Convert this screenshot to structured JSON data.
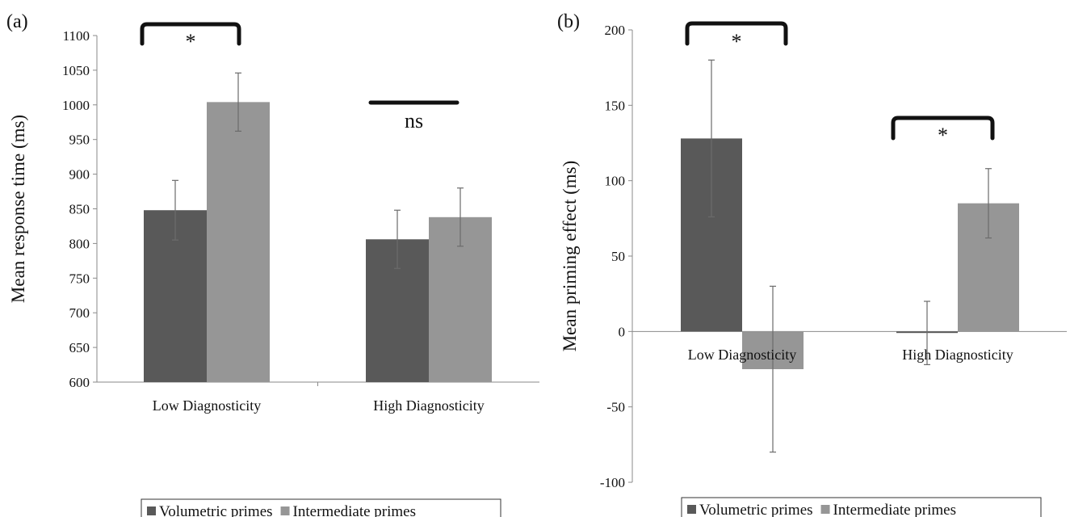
{
  "chart_data": [
    {
      "type": "bar",
      "panel_label": "(a)",
      "categories": [
        "Low Diagnosticity",
        "High Diagnosticity"
      ],
      "ylabel": "Mean response time (ms)",
      "ylim": [
        600,
        1100
      ],
      "yticks": [
        600,
        650,
        700,
        750,
        800,
        850,
        900,
        950,
        1000,
        1050,
        1100
      ],
      "series": [
        {
          "name": "Volumetric primes",
          "color": "#595959",
          "values": [
            848,
            806
          ],
          "errors": [
            43,
            42
          ]
        },
        {
          "name": "Intermediate primes",
          "color": "#969696",
          "values": [
            1004,
            838
          ],
          "errors": [
            42,
            42
          ]
        }
      ],
      "annotations": [
        {
          "type": "bracket",
          "category": 0,
          "text": "*"
        },
        {
          "type": "line",
          "category": 1,
          "text": "ns"
        }
      ],
      "legend_position": "bottom"
    },
    {
      "type": "bar",
      "panel_label": "(b)",
      "categories": [
        "Low Diagnosticity",
        "High Diagnosticity"
      ],
      "ylabel": "Mean priming effect (ms)",
      "ylim": [
        -100,
        200
      ],
      "yticks": [
        -100,
        -50,
        0,
        50,
        100,
        150,
        200
      ],
      "series": [
        {
          "name": "Volumetric primes",
          "color": "#595959",
          "values": [
            128,
            -1
          ],
          "errors": [
            52,
            21
          ]
        },
        {
          "name": "Intermediate primes",
          "color": "#969696",
          "values": [
            -25,
            85
          ],
          "errors": [
            55,
            23
          ]
        }
      ],
      "annotations": [
        {
          "type": "bracket",
          "category": 0,
          "text": "*"
        },
        {
          "type": "bracket",
          "category": 1,
          "text": "*"
        }
      ],
      "legend_position": "bottom"
    }
  ]
}
